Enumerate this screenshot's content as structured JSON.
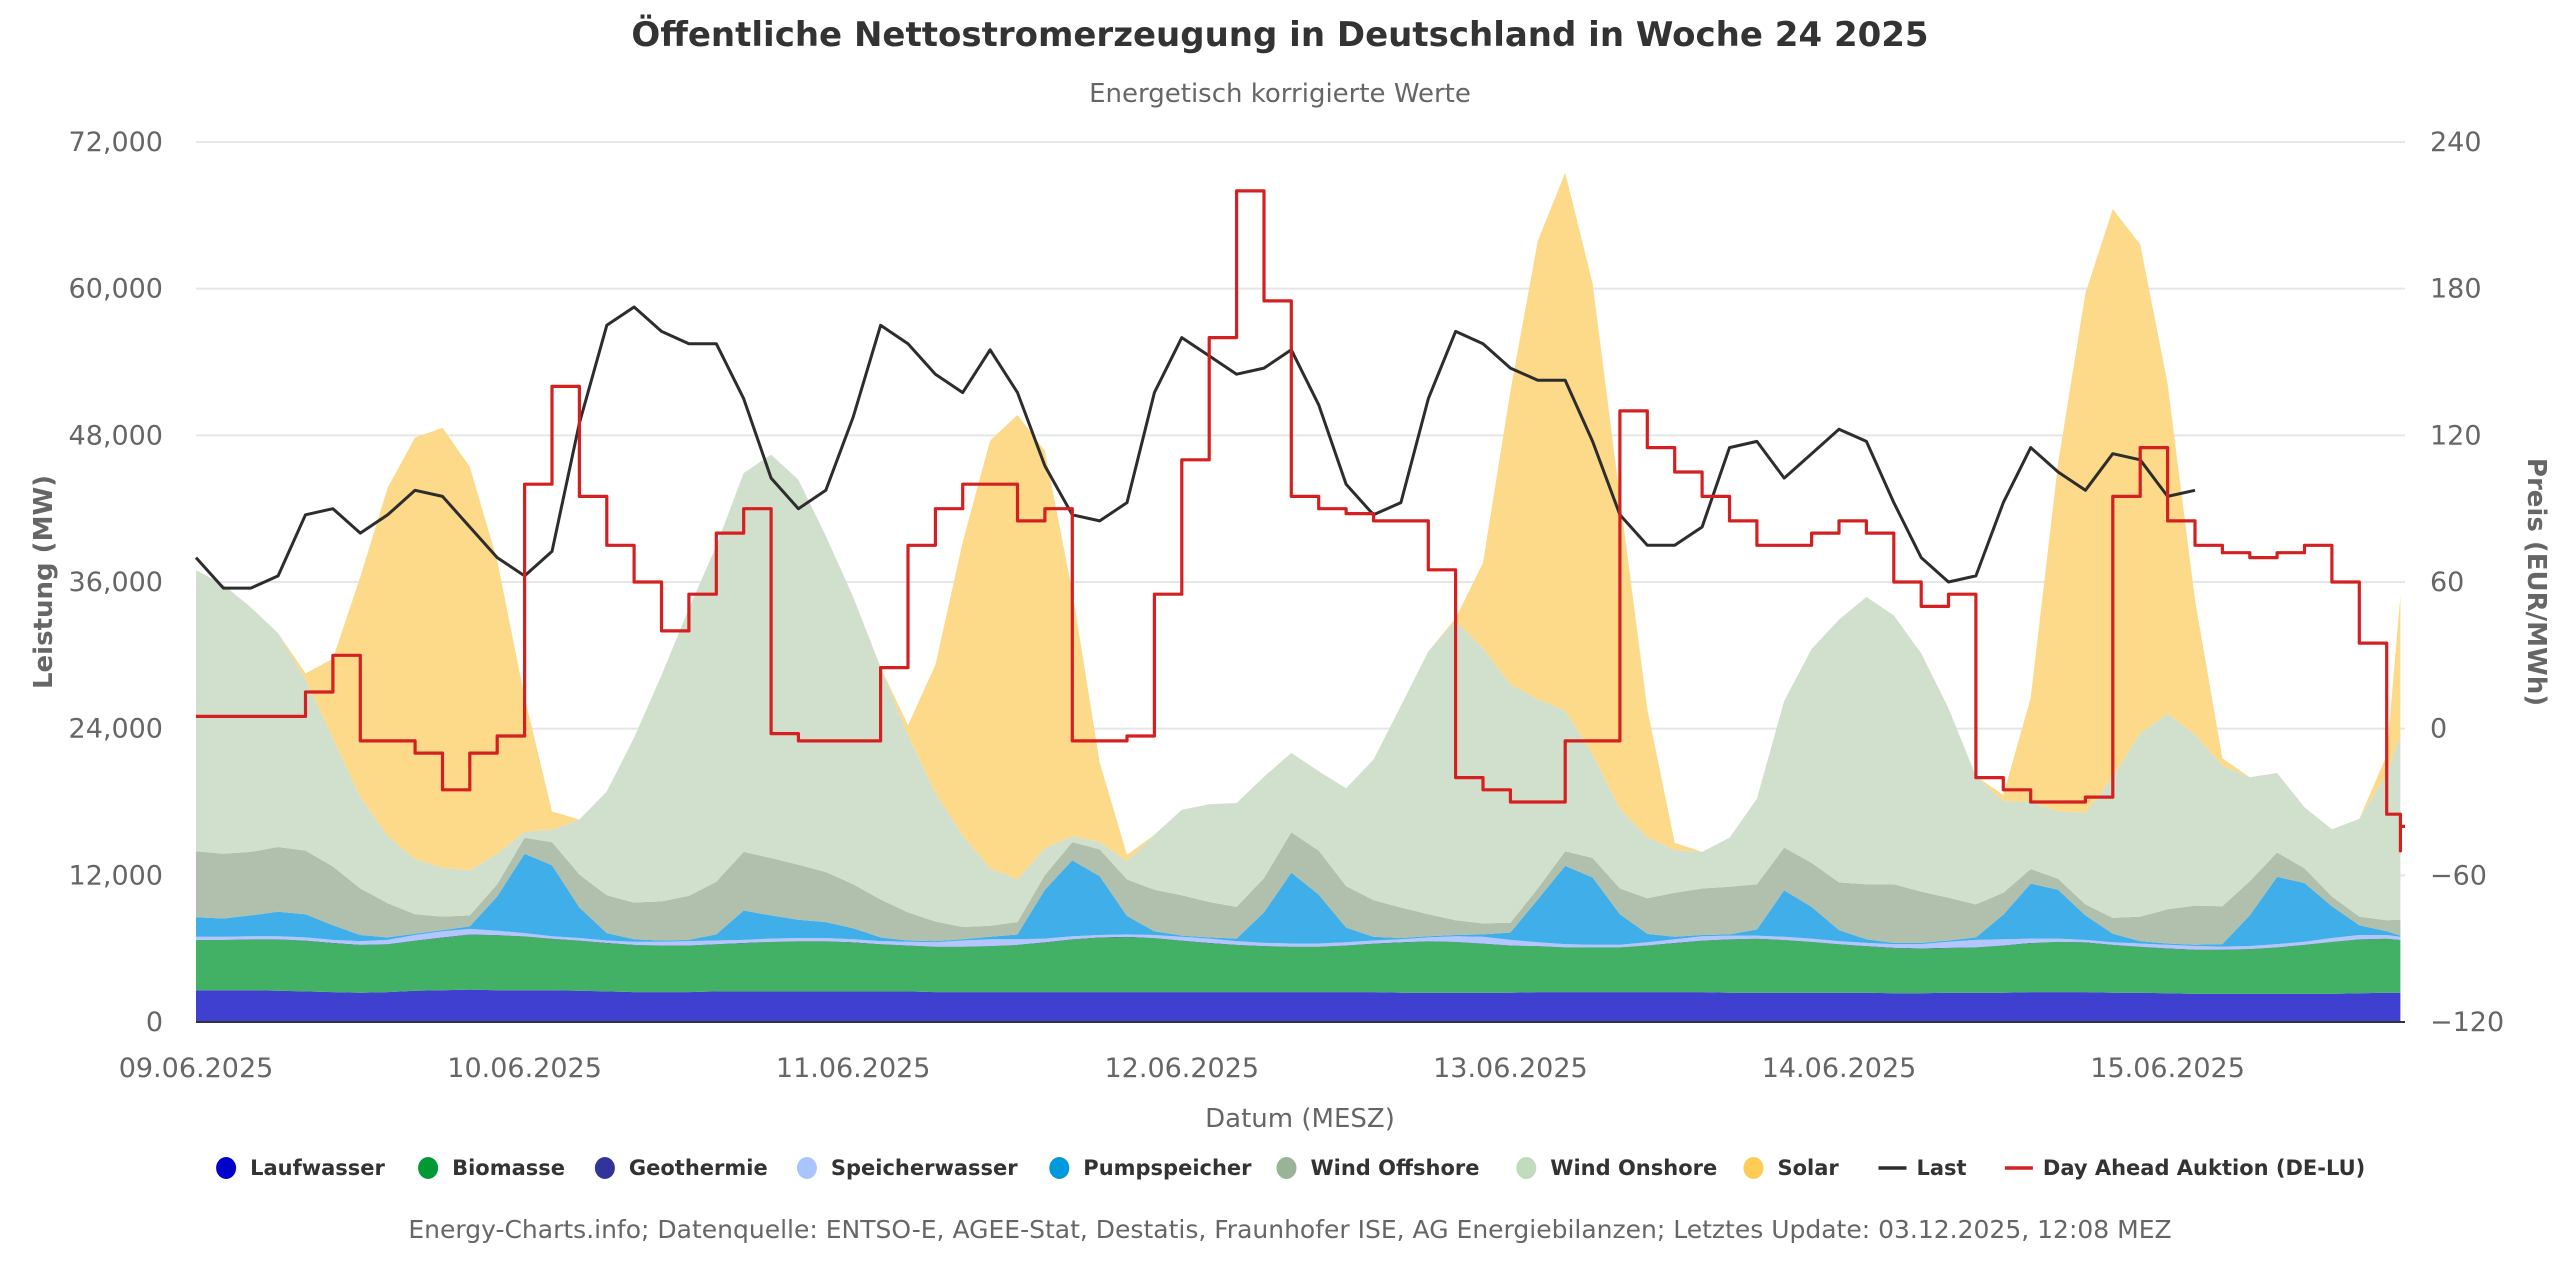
{
  "chart_data": {
    "type": "area",
    "title": "Öffentliche Nettostromerzeugung in Deutschland in Woche 24 2025",
    "subtitle": "Energetisch korrigierte Werte",
    "xlabel": "Datum (MESZ)",
    "ylabel": "Leistung (MW)",
    "y2label": "Preis (EUR/MWh)",
    "ylim": [
      0,
      72000
    ],
    "y2lim": [
      -120,
      240
    ],
    "yticks": [
      "0",
      "12,000",
      "24,000",
      "36,000",
      "48,000",
      "60,000",
      "72,000"
    ],
    "y2ticks": [
      "−120",
      "−60",
      "0",
      "60",
      "120",
      "180",
      "240"
    ],
    "xticks": [
      "09.06.2025",
      "10.06.2025",
      "11.06.2025",
      "12.06.2025",
      "13.06.2025",
      "14.06.2025",
      "15.06.2025"
    ],
    "x_unit": "hours since 09.06.2025 00:00, 2-hour steps",
    "x_hours_range": [
      0,
      161
    ],
    "grid": true,
    "legend_position": "bottom",
    "stacked": true,
    "series": [
      {
        "name": "Laufwasser",
        "kind": "area",
        "color": "#4040d0",
        "legend_color": "#0000cc",
        "values": [
          2600,
          2600,
          2600,
          2550,
          2500,
          2450,
          2400,
          2450,
          2550,
          2600,
          2650,
          2600,
          2600,
          2600,
          2550,
          2500,
          2450,
          2450,
          2450,
          2500,
          2500,
          2500,
          2500,
          2500,
          2500,
          2500,
          2500,
          2450,
          2450,
          2450,
          2450,
          2450,
          2450,
          2450,
          2450,
          2450,
          2450,
          2450,
          2450,
          2450,
          2450,
          2450,
          2450,
          2450,
          2400,
          2400,
          2400,
          2400,
          2400,
          2450,
          2450,
          2450,
          2450,
          2450,
          2450,
          2450,
          2400,
          2400,
          2400,
          2400,
          2400,
          2400,
          2350,
          2350,
          2400,
          2400,
          2400,
          2450,
          2450,
          2450,
          2400,
          2400,
          2350,
          2300,
          2300,
          2300,
          2300,
          2300,
          2300,
          2350,
          2400,
          2400,
          2400,
          2350
        ]
      },
      {
        "name": "Biomasse",
        "kind": "area",
        "color": "#42b065",
        "legend_color": "#009933",
        "values": [
          4100,
          4100,
          4150,
          4200,
          4150,
          4000,
          3900,
          3900,
          4100,
          4300,
          4500,
          4500,
          4400,
          4200,
          4100,
          3950,
          3850,
          3800,
          3800,
          3850,
          3950,
          4050,
          4100,
          4100,
          4000,
          3850,
          3750,
          3700,
          3700,
          3750,
          3850,
          4050,
          4300,
          4450,
          4500,
          4400,
          4200,
          4000,
          3850,
          3750,
          3700,
          3700,
          3800,
          3950,
          4100,
          4200,
          4150,
          4000,
          3850,
          3750,
          3650,
          3650,
          3650,
          3800,
          4000,
          4200,
          4350,
          4400,
          4300,
          4150,
          3950,
          3800,
          3700,
          3650,
          3650,
          3700,
          3850,
          4000,
          4100,
          4050,
          3900,
          3750,
          3650,
          3600,
          3600,
          3650,
          3800,
          4000,
          4250,
          4400,
          4400,
          4300,
          4200,
          4200
        ]
      },
      {
        "name": "Geothermie",
        "kind": "area",
        "color": "#333399",
        "legend_color": "#333399",
        "values": [
          20,
          20,
          20,
          20,
          20,
          20,
          20,
          20,
          20,
          20,
          20,
          20,
          20,
          20,
          20,
          20,
          20,
          20,
          20,
          20,
          20,
          20,
          20,
          20,
          20,
          20,
          20,
          20,
          20,
          20,
          20,
          20,
          20,
          20,
          20,
          20,
          20,
          20,
          20,
          20,
          20,
          20,
          20,
          20,
          20,
          20,
          20,
          20,
          20,
          20,
          20,
          20,
          20,
          20,
          20,
          20,
          20,
          20,
          20,
          20,
          20,
          20,
          20,
          20,
          20,
          20,
          20,
          20,
          20,
          20,
          20,
          20,
          20,
          20,
          20,
          20,
          20,
          20,
          20,
          20,
          20,
          20,
          20,
          20
        ]
      },
      {
        "name": "Speicherwasser",
        "kind": "area",
        "color": "#b3c6ff",
        "legend_color": "#aac4ff",
        "values": [
          250,
          250,
          250,
          250,
          250,
          250,
          300,
          350,
          450,
          500,
          450,
          350,
          250,
          200,
          200,
          200,
          250,
          300,
          350,
          300,
          250,
          250,
          250,
          250,
          250,
          250,
          300,
          350,
          500,
          550,
          450,
          300,
          250,
          200,
          200,
          250,
          300,
          350,
          300,
          250,
          250,
          250,
          250,
          250,
          250,
          300,
          450,
          550,
          450,
          300,
          250,
          200,
          200,
          250,
          300,
          350,
          300,
          250,
          250,
          250,
          250,
          250,
          300,
          350,
          500,
          600,
          500,
          350,
          250,
          200,
          200,
          250,
          300,
          300,
          250,
          250,
          250,
          250,
          300,
          350,
          300,
          250,
          300,
          300
        ]
      },
      {
        "name": "Pumpspeicher",
        "kind": "area",
        "color": "#40aee8",
        "legend_color": "#0099dd",
        "values": [
          1600,
          1500,
          1700,
          2000,
          1900,
          1200,
          500,
          200,
          100,
          100,
          200,
          2800,
          6500,
          5800,
          2500,
          600,
          200,
          100,
          100,
          500,
          2400,
          1900,
          1500,
          1300,
          900,
          300,
          100,
          100,
          100,
          200,
          400,
          4000,
          6200,
          4800,
          1500,
          300,
          100,
          100,
          200,
          2500,
          5800,
          4000,
          1200,
          300,
          100,
          100,
          100,
          200,
          600,
          3500,
          6400,
          5500,
          2500,
          700,
          200,
          100,
          100,
          500,
          3800,
          2600,
          900,
          300,
          100,
          100,
          100,
          200,
          2000,
          4500,
          4000,
          2000,
          700,
          200,
          100,
          100,
          200,
          2500,
          5500,
          4800,
          2600,
          800,
          300,
          100,
          2000,
          3500
        ]
      },
      {
        "name": "Wind Offshore",
        "kind": "area",
        "color": "#b0c0ac",
        "legend_color": "#99b399",
        "values": [
          5400,
          5300,
          5200,
          5300,
          5200,
          4800,
          3800,
          2800,
          1600,
          1100,
          900,
          1000,
          1300,
          1900,
          2700,
          3100,
          3000,
          3200,
          3600,
          4300,
          4800,
          4700,
          4500,
          4100,
          3600,
          3100,
          2300,
          1600,
          1000,
          900,
          1000,
          1200,
          1500,
          2200,
          3000,
          3400,
          3300,
          2900,
          2600,
          2800,
          3300,
          3600,
          3400,
          3000,
          2500,
          1800,
          1200,
          900,
          800,
          900,
          1200,
          1600,
          2100,
          2900,
          3600,
          3800,
          3900,
          3700,
          3500,
          3600,
          3900,
          4500,
          4800,
          4200,
          3500,
          2700,
          1800,
          1200,
          900,
          900,
          1300,
          2000,
          2800,
          3200,
          3100,
          2800,
          2000,
          1200,
          800,
          700,
          900,
          1300,
          2500,
          2800
        ]
      },
      {
        "name": "Wind Onshore",
        "kind": "area",
        "color": "#d1e0cd",
        "legend_color": "#c1dbbd",
        "values": [
          23000,
          22000,
          20000,
          17500,
          14000,
          10500,
          7500,
          5500,
          4500,
          4000,
          3700,
          2500,
          500,
          1000,
          4500,
          8500,
          13500,
          18500,
          23500,
          27500,
          31000,
          33000,
          31500,
          27500,
          23500,
          19000,
          14500,
          10500,
          7500,
          4700,
          3500,
          2200,
          500,
          600,
          1500,
          4500,
          7000,
          8000,
          8500,
          8300,
          6500,
          6500,
          8000,
          11500,
          16500,
          21500,
          24500,
          22500,
          19500,
          15500,
          11500,
          8500,
          6500,
          5000,
          3500,
          3000,
          4000,
          7000,
          12000,
          17500,
          21500,
          23500,
          22000,
          19500,
          15500,
          10500,
          7500,
          5500,
          5500,
          7500,
          11500,
          15000,
          16000,
          14000,
          11500,
          8500,
          6500,
          5000,
          5500,
          8000,
          12000,
          15000,
          14500,
          14000
        ]
      },
      {
        "name": "Solar",
        "kind": "area",
        "color": "#fdd98a",
        "legend_color": "#ffcc55",
        "values": [
          0,
          0,
          0,
          0,
          500,
          6500,
          18000,
          28500,
          34500,
          36000,
          33000,
          24000,
          11000,
          1500,
          0,
          0,
          0,
          0,
          0,
          0,
          0,
          0,
          0,
          0,
          0,
          0,
          800,
          10500,
          24000,
          35000,
          38000,
          32500,
          20000,
          6500,
          500,
          0,
          0,
          0,
          0,
          0,
          0,
          0,
          0,
          0,
          0,
          0,
          200,
          7000,
          24000,
          37500,
          44000,
          38500,
          25500,
          10500,
          600,
          0,
          0,
          0,
          0,
          0,
          0,
          0,
          0,
          0,
          0,
          0,
          500,
          8500,
          28500,
          42500,
          46500,
          40000,
          27000,
          11000,
          600,
          0,
          0,
          0,
          0,
          0,
          1500,
          11500,
          22500,
          25500,
          19000,
          9500,
          2500
        ]
      },
      {
        "name": "Last",
        "kind": "line",
        "color": "#2d2d2d",
        "values": [
          38000,
          35500,
          35500,
          36500,
          41500,
          42000,
          40000,
          41500,
          43500,
          43000,
          40500,
          38000,
          36500,
          38500,
          49000,
          57000,
          58500,
          56500,
          55500,
          55500,
          51000,
          44500,
          42000,
          43500,
          49500,
          57000,
          55500,
          53000,
          51500,
          55000,
          51500,
          45500,
          41500,
          41000,
          42500,
          51500,
          56000,
          54500,
          53000,
          53500,
          55000,
          50500,
          44000,
          41500,
          42500,
          51000,
          56500,
          55500,
          53500,
          52500,
          52500,
          47500,
          41500,
          39000,
          39000,
          40500,
          47000,
          47500,
          44500,
          46500,
          48500,
          47500,
          42500,
          38000,
          36000,
          36500,
          42500,
          47000,
          45000,
          43500,
          46500,
          46000,
          43000,
          43500
        ]
      },
      {
        "name": "Day Ahead Auktion (DE-LU)",
        "kind": "line",
        "axis": "right",
        "color": "#d42020",
        "values": [
          5,
          5,
          5,
          5,
          15,
          30,
          -5,
          -5,
          -10,
          -25,
          -10,
          -3,
          100,
          140,
          95,
          75,
          60,
          40,
          55,
          80,
          90,
          -2,
          -5,
          -5,
          -5,
          25,
          75,
          90,
          100,
          100,
          85,
          90,
          -5,
          -5,
          -3,
          55,
          110,
          160,
          220,
          175,
          95,
          90,
          88,
          85,
          85,
          65,
          -20,
          -25,
          -30,
          -30,
          -5,
          -5,
          130,
          115,
          105,
          95,
          85,
          75,
          75,
          80,
          85,
          80,
          60,
          50,
          55,
          -20,
          -25,
          -30,
          -30,
          -28,
          95,
          115,
          85,
          75,
          72,
          70,
          72,
          75,
          60,
          35,
          -35,
          -50,
          -45,
          -50,
          -40
        ]
      },
      {
        "name": "__note__",
        "kind": "none",
        "values": []
      }
    ]
  },
  "legend": {
    "items": [
      {
        "label": "Laufwasser",
        "symbol": "dot",
        "color": "#0000cc"
      },
      {
        "label": "Biomasse",
        "symbol": "dot",
        "color": "#009933"
      },
      {
        "label": "Geothermie",
        "symbol": "dot",
        "color": "#333399"
      },
      {
        "label": "Speicherwasser",
        "symbol": "dot",
        "color": "#aac4ff"
      },
      {
        "label": "Pumpspeicher",
        "symbol": "dot",
        "color": "#0099dd"
      },
      {
        "label": "Wind Offshore",
        "symbol": "dot",
        "color": "#99b399"
      },
      {
        "label": "Wind Onshore",
        "symbol": "dot",
        "color": "#c1dbbd"
      },
      {
        "label": "Solar",
        "symbol": "dot",
        "color": "#ffcc55"
      },
      {
        "label": "Last",
        "symbol": "line",
        "color": "#2d2d2d"
      },
      {
        "label": "Day Ahead Auktion (DE-LU)",
        "symbol": "line",
        "color": "#d42020"
      }
    ]
  },
  "credits": "Energy-Charts.info; Datenquelle: ENTSO-E, AGEE-Stat, Destatis, Fraunhofer ISE, AG Energiebilanzen; Letztes Update: 03.12.2025, 12:08 MEZ"
}
